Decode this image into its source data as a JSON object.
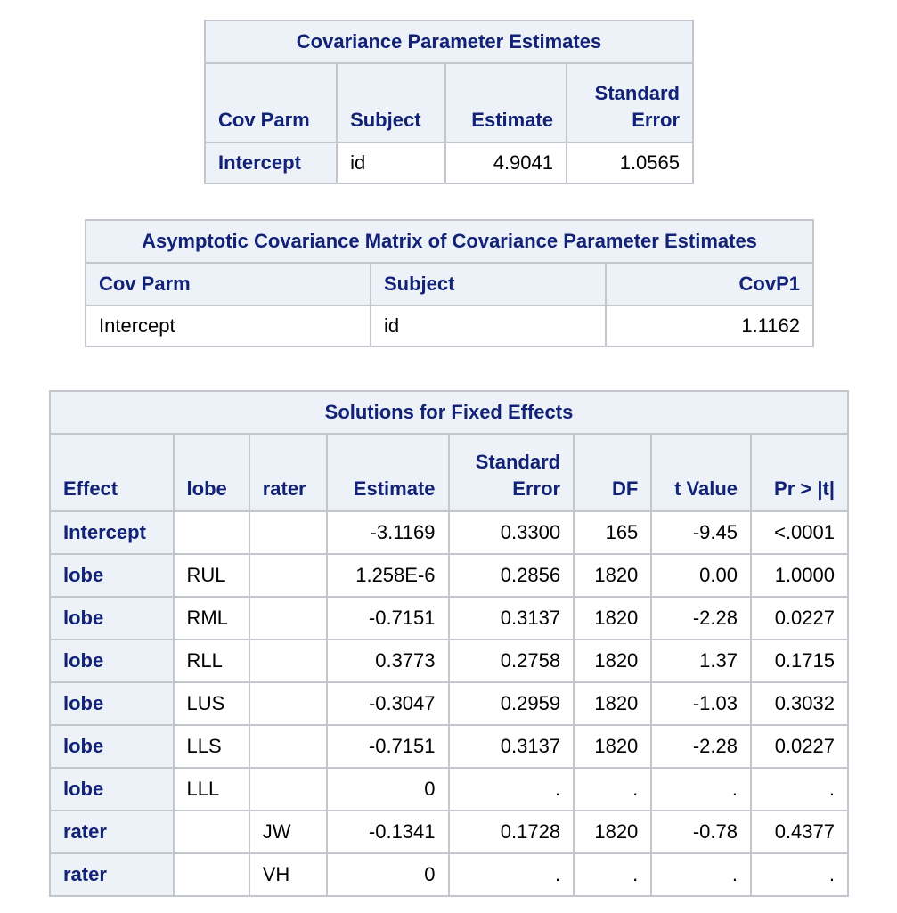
{
  "cov_param_table": {
    "title": "Covariance Parameter Estimates",
    "headers": [
      "Cov Parm",
      "Subject",
      "Estimate",
      "Standard Error"
    ],
    "rows": [
      [
        "Intercept",
        "id",
        "4.9041",
        "1.0565"
      ]
    ]
  },
  "asym_cov_table": {
    "title": "Asymptotic Covariance Matrix of Covariance Parameter Estimates",
    "headers": [
      "Cov Parm",
      "Subject",
      "CovP1"
    ],
    "rows": [
      [
        "Intercept",
        "id",
        "1.1162"
      ]
    ]
  },
  "fixed_effects_table": {
    "title": "Solutions for Fixed Effects",
    "headers": [
      "Effect",
      "lobe",
      "rater",
      "Estimate",
      "Standard Error",
      "DF",
      "t Value",
      "Pr > |t|"
    ],
    "rows": [
      [
        "Intercept",
        "",
        "",
        "-3.1169",
        "0.3300",
        "165",
        "-9.45",
        "<.0001"
      ],
      [
        "lobe",
        "RUL",
        "",
        "1.258E-6",
        "0.2856",
        "1820",
        "0.00",
        "1.0000"
      ],
      [
        "lobe",
        "RML",
        "",
        "-0.7151",
        "0.3137",
        "1820",
        "-2.28",
        "0.0227"
      ],
      [
        "lobe",
        "RLL",
        "",
        "0.3773",
        "0.2758",
        "1820",
        "1.37",
        "0.1715"
      ],
      [
        "lobe",
        "LUS",
        "",
        "-0.3047",
        "0.2959",
        "1820",
        "-1.03",
        "0.3032"
      ],
      [
        "lobe",
        "LLS",
        "",
        "-0.7151",
        "0.3137",
        "1820",
        "-2.28",
        "0.0227"
      ],
      [
        "lobe",
        "LLL",
        "",
        "0",
        ".",
        ".",
        ".",
        "."
      ],
      [
        "rater",
        "",
        "JW",
        "-0.1341",
        "0.1728",
        "1820",
        "-0.78",
        "0.4377"
      ],
      [
        "rater",
        "",
        "VH",
        "0",
        ".",
        ".",
        ".",
        "."
      ]
    ]
  }
}
